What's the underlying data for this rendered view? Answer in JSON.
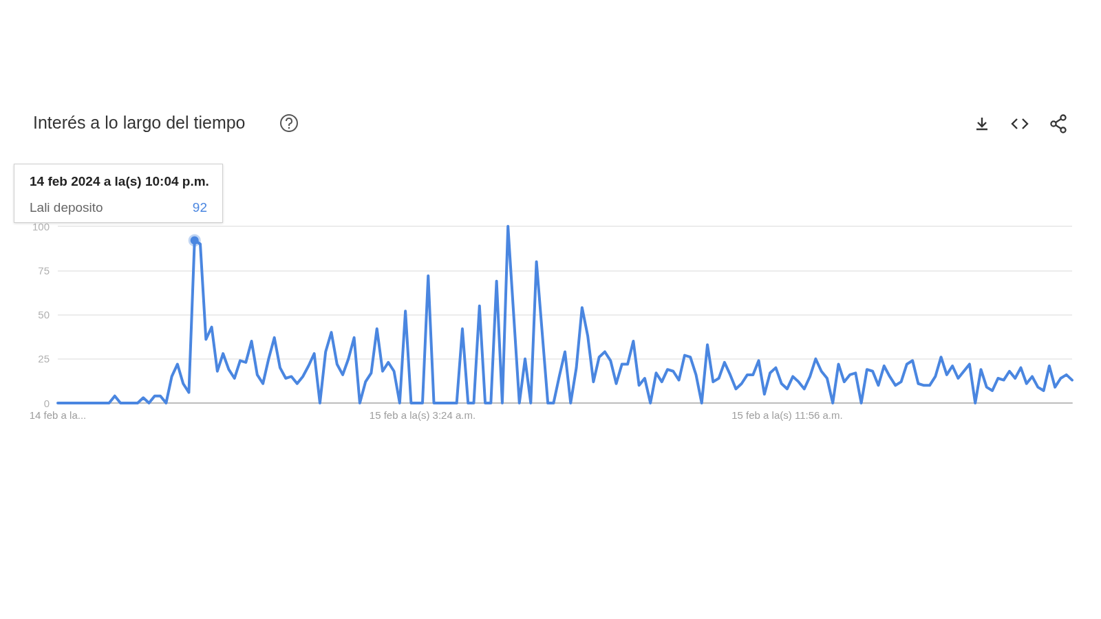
{
  "chart_data": {
    "type": "line",
    "title": "Interés a lo largo del tiempo",
    "annotations": [
      "14 feb 2024 a la(s) 10:04 p.m."
    ],
    "categories": [
      "14 feb a la...",
      null,
      null,
      null,
      null,
      null,
      null,
      null,
      null,
      null,
      null,
      null,
      null,
      null,
      null,
      null,
      null,
      null,
      null,
      null,
      null,
      null,
      null,
      null,
      null,
      null,
      null,
      null,
      null,
      null,
      null,
      null,
      null,
      null,
      null,
      null,
      null,
      null,
      null,
      null,
      null,
      null,
      null,
      null,
      null,
      null,
      null,
      null,
      null,
      null,
      null,
      null,
      null,
      null,
      null,
      null,
      null,
      null,
      null,
      null,
      null,
      null,
      null,
      null,
      "15 feb a la(s) 3:24 a.m.",
      null,
      null,
      null,
      null,
      null,
      null,
      null,
      null,
      null,
      null,
      null,
      null,
      null,
      null,
      null,
      null,
      null,
      null,
      null,
      null,
      null,
      null,
      null,
      null,
      null,
      null,
      null,
      null,
      null,
      null,
      null,
      null,
      null,
      null,
      null,
      null,
      null,
      null,
      null,
      null,
      null,
      null,
      null,
      null,
      null,
      null,
      null,
      null,
      null,
      null,
      null,
      null,
      null,
      null,
      null,
      null,
      null,
      null,
      null,
      null,
      null,
      null,
      null,
      "15 feb a la(s) 11:56 a.m.",
      null,
      null,
      null,
      null,
      null,
      null,
      null,
      null,
      null,
      null,
      null,
      null,
      null,
      null,
      null,
      null,
      null,
      null,
      null,
      null,
      null,
      null,
      null,
      null,
      null,
      null,
      null,
      null,
      null,
      null,
      null,
      null,
      null,
      null,
      null,
      null,
      null,
      null,
      null,
      null,
      null,
      null,
      null,
      null,
      null,
      null,
      null,
      null,
      null,
      null
    ],
    "series": [
      {
        "name": "Lali deposito",
        "color": "#4a86e0",
        "values": [
          0,
          0,
          0,
          0,
          0,
          0,
          0,
          0,
          0,
          0,
          4,
          0,
          0,
          0,
          0,
          3,
          0,
          4,
          4,
          0,
          15,
          22,
          11,
          6,
          92,
          90,
          36,
          43,
          18,
          28,
          19,
          14,
          24,
          23,
          35,
          16,
          11,
          25,
          37,
          20,
          14,
          15,
          11,
          15,
          21,
          28,
          0,
          29,
          40,
          22,
          16,
          25,
          37,
          0,
          12,
          17,
          42,
          18,
          23,
          18,
          0,
          52,
          0,
          0,
          0,
          72,
          0,
          0,
          0,
          0,
          0,
          42,
          0,
          0,
          55,
          0,
          0,
          69,
          0,
          100,
          50,
          0,
          25,
          0,
          80,
          40,
          0,
          0,
          15,
          29,
          0,
          20,
          54,
          38,
          12,
          26,
          29,
          24,
          11,
          22,
          22,
          35,
          10,
          14,
          0,
          17,
          12,
          19,
          18,
          13,
          27,
          26,
          16,
          0,
          33,
          12,
          14,
          23,
          16,
          8,
          11,
          16,
          16,
          24,
          5,
          17,
          20,
          11,
          8,
          15,
          12,
          8,
          15,
          25,
          18,
          14,
          0,
          22,
          12,
          16,
          17,
          0,
          19,
          18,
          10,
          21,
          15,
          10,
          12,
          22,
          24,
          11,
          10,
          10,
          15,
          26,
          16,
          21,
          14,
          18,
          22,
          0,
          19,
          9,
          7,
          14,
          13,
          18,
          14,
          20,
          11,
          15,
          9,
          7,
          21,
          9,
          14,
          16,
          13
        ],
        "value_labels": [
          null,
          null,
          null,
          null,
          null,
          null,
          null,
          null,
          null,
          null,
          null,
          null,
          null,
          null,
          null,
          null,
          null,
          null,
          null,
          null,
          null,
          null,
          null,
          null,
          "92",
          null,
          null,
          null,
          null,
          null,
          null,
          null,
          null,
          null,
          null,
          null,
          null,
          null,
          null,
          null,
          null,
          null,
          null,
          null,
          null,
          null,
          null,
          null,
          null,
          null,
          null,
          null,
          null,
          null,
          null,
          null,
          null,
          null,
          null,
          null,
          null,
          null,
          null,
          null,
          null,
          null,
          null,
          null,
          null,
          null,
          null,
          null,
          null,
          null,
          null,
          null,
          null,
          null,
          null,
          null,
          null,
          null,
          null,
          null,
          null,
          null,
          null,
          null,
          null,
          null,
          null,
          null,
          null,
          null,
          null,
          null,
          null,
          null,
          null,
          null,
          null,
          null,
          null,
          null,
          null,
          null,
          null,
          null,
          null,
          null,
          null,
          null,
          null,
          null,
          null,
          null,
          null,
          null,
          null,
          null,
          null,
          null,
          null,
          null,
          null,
          null,
          null,
          null,
          null,
          null,
          null,
          null,
          null,
          null,
          null,
          null,
          null,
          null,
          null,
          null,
          null,
          null,
          null,
          null,
          null,
          null,
          null,
          null,
          null,
          null,
          null,
          null,
          null,
          null,
          null,
          null,
          null,
          null,
          null,
          null,
          null,
          null,
          null,
          null,
          null,
          null,
          null,
          null,
          null,
          null,
          null,
          null,
          null,
          null,
          null,
          null,
          null,
          null,
          null
        ]
      }
    ],
    "ylim": [
      0,
      100
    ],
    "yticks": [
      0,
      25,
      50,
      75,
      100
    ],
    "grid": "y",
    "marker": "none",
    "line_style": "solid"
  }
}
